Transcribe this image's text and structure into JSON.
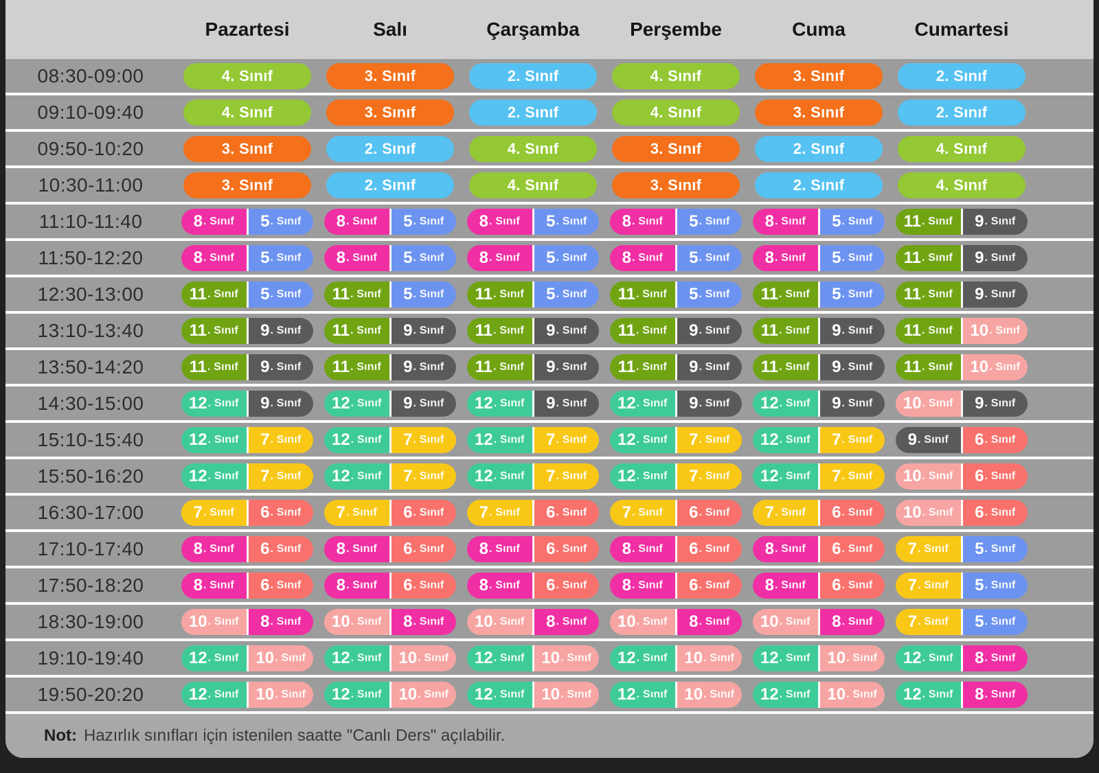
{
  "header": {
    "days": [
      "Pazartesi",
      "Salı",
      "Çarşamba",
      "Perşembe",
      "Cuma",
      "Cumartesi"
    ]
  },
  "pill_suffix": "Sınıf",
  "grade_colors": {
    "2": "#56C2F2",
    "3": "#F4701A",
    "4": "#94C834",
    "5": "#6D93F0",
    "6": "#F9716C",
    "7": "#F9C816",
    "8": "#F02FA4",
    "9": "#5A5A5A",
    "10": "#F7A5A3",
    "11": "#70A413",
    "12": "#3ECB98"
  },
  "layout_colors": {
    "page_background": "#212121",
    "header_background": "#D0D0D0",
    "row_background": "#9C9C9C",
    "footer_background": "#A8A8A8",
    "separator": "#FBFBFB"
  },
  "rows": [
    {
      "time": "08:30-09:00",
      "cells": [
        [
          "4"
        ],
        [
          "3"
        ],
        [
          "2"
        ],
        [
          "4"
        ],
        [
          "3"
        ],
        [
          "2"
        ]
      ]
    },
    {
      "time": "09:10-09:40",
      "cells": [
        [
          "4"
        ],
        [
          "3"
        ],
        [
          "2"
        ],
        [
          "4"
        ],
        [
          "3"
        ],
        [
          "2"
        ]
      ]
    },
    {
      "time": "09:50-10:20",
      "cells": [
        [
          "3"
        ],
        [
          "2"
        ],
        [
          "4"
        ],
        [
          "3"
        ],
        [
          "2"
        ],
        [
          "4"
        ]
      ]
    },
    {
      "time": "10:30-11:00",
      "cells": [
        [
          "3"
        ],
        [
          "2"
        ],
        [
          "4"
        ],
        [
          "3"
        ],
        [
          "2"
        ],
        [
          "4"
        ]
      ]
    },
    {
      "time": "11:10-11:40",
      "cells": [
        [
          "8",
          "5"
        ],
        [
          "8",
          "5"
        ],
        [
          "8",
          "5"
        ],
        [
          "8",
          "5"
        ],
        [
          "8",
          "5"
        ],
        [
          "11",
          "9"
        ]
      ]
    },
    {
      "time": "11:50-12:20",
      "cells": [
        [
          "8",
          "5"
        ],
        [
          "8",
          "5"
        ],
        [
          "8",
          "5"
        ],
        [
          "8",
          "5"
        ],
        [
          "8",
          "5"
        ],
        [
          "11",
          "9"
        ]
      ]
    },
    {
      "time": "12:30-13:00",
      "cells": [
        [
          "11",
          "5"
        ],
        [
          "11",
          "5"
        ],
        [
          "11",
          "5"
        ],
        [
          "11",
          "5"
        ],
        [
          "11",
          "5"
        ],
        [
          "11",
          "9"
        ]
      ]
    },
    {
      "time": "13:10-13:40",
      "cells": [
        [
          "11",
          "9"
        ],
        [
          "11",
          "9"
        ],
        [
          "11",
          "9"
        ],
        [
          "11",
          "9"
        ],
        [
          "11",
          "9"
        ],
        [
          "11",
          "10"
        ]
      ]
    },
    {
      "time": "13:50-14:20",
      "cells": [
        [
          "11",
          "9"
        ],
        [
          "11",
          "9"
        ],
        [
          "11",
          "9"
        ],
        [
          "11",
          "9"
        ],
        [
          "11",
          "9"
        ],
        [
          "11",
          "10"
        ]
      ]
    },
    {
      "time": "14:30-15:00",
      "cells": [
        [
          "12",
          "9"
        ],
        [
          "12",
          "9"
        ],
        [
          "12",
          "9"
        ],
        [
          "12",
          "9"
        ],
        [
          "12",
          "9"
        ],
        [
          "10",
          "9"
        ]
      ]
    },
    {
      "time": "15:10-15:40",
      "cells": [
        [
          "12",
          "7"
        ],
        [
          "12",
          "7"
        ],
        [
          "12",
          "7"
        ],
        [
          "12",
          "7"
        ],
        [
          "12",
          "7"
        ],
        [
          "9",
          "6"
        ]
      ]
    },
    {
      "time": "15:50-16:20",
      "cells": [
        [
          "12",
          "7"
        ],
        [
          "12",
          "7"
        ],
        [
          "12",
          "7"
        ],
        [
          "12",
          "7"
        ],
        [
          "12",
          "7"
        ],
        [
          "10",
          "6"
        ]
      ]
    },
    {
      "time": "16:30-17:00",
      "cells": [
        [
          "7",
          "6"
        ],
        [
          "7",
          "6"
        ],
        [
          "7",
          "6"
        ],
        [
          "7",
          "6"
        ],
        [
          "7",
          "6"
        ],
        [
          "10",
          "6"
        ]
      ]
    },
    {
      "time": "17:10-17:40",
      "cells": [
        [
          "8",
          "6"
        ],
        [
          "8",
          "6"
        ],
        [
          "8",
          "6"
        ],
        [
          "8",
          "6"
        ],
        [
          "8",
          "6"
        ],
        [
          "7",
          "5"
        ]
      ]
    },
    {
      "time": "17:50-18:20",
      "cells": [
        [
          "8",
          "6"
        ],
        [
          "8",
          "6"
        ],
        [
          "8",
          "6"
        ],
        [
          "8",
          "6"
        ],
        [
          "8",
          "6"
        ],
        [
          "7",
          "5"
        ]
      ]
    },
    {
      "time": "18:30-19:00",
      "cells": [
        [
          "10",
          "8"
        ],
        [
          "10",
          "8"
        ],
        [
          "10",
          "8"
        ],
        [
          "10",
          "8"
        ],
        [
          "10",
          "8"
        ],
        [
          "7",
          "5"
        ]
      ]
    },
    {
      "time": "19:10-19:40",
      "cells": [
        [
          "12",
          "10"
        ],
        [
          "12",
          "10"
        ],
        [
          "12",
          "10"
        ],
        [
          "12",
          "10"
        ],
        [
          "12",
          "10"
        ],
        [
          "12",
          "8"
        ]
      ]
    },
    {
      "time": "19:50-20:20",
      "cells": [
        [
          "12",
          "10"
        ],
        [
          "12",
          "10"
        ],
        [
          "12",
          "10"
        ],
        [
          "12",
          "10"
        ],
        [
          "12",
          "10"
        ],
        [
          "12",
          "8"
        ]
      ]
    }
  ],
  "note": {
    "label": "Not:",
    "text": "Hazırlık sınıfları için istenilen saatte \"Canlı Ders\" açılabilir."
  }
}
